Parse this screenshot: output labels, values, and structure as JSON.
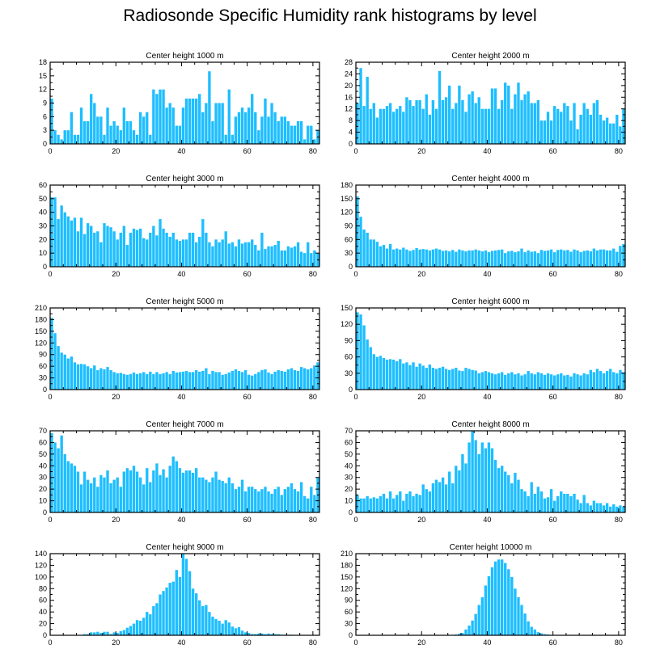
{
  "page_title": "Radiosonde Specific Humidity rank histograms by level",
  "bar_color": "#1ebeff",
  "chart_data": [
    {
      "type": "bar",
      "title": "Center height 1000 m",
      "xlim": [
        0,
        82
      ],
      "ylim": [
        0,
        18
      ],
      "xticks": [
        0,
        20,
        40,
        60,
        80
      ],
      "yticks": [
        0,
        3,
        6,
        9,
        12,
        15,
        18
      ],
      "values": [
        10,
        3,
        2,
        1,
        3,
        3,
        7,
        2,
        2,
        8,
        5,
        5,
        11,
        9,
        6,
        6,
        2,
        8,
        4,
        5,
        4,
        3,
        8,
        5,
        5,
        3,
        2,
        7,
        6,
        7,
        2,
        12,
        11,
        12,
        12,
        8,
        9,
        8,
        4,
        4,
        8,
        10,
        10,
        10,
        10,
        11,
        7,
        9,
        16,
        5,
        9,
        9,
        9,
        2,
        12,
        2,
        6,
        7,
        8,
        7,
        8,
        11,
        7,
        3,
        6,
        10,
        6,
        9,
        7,
        5,
        6,
        6,
        5,
        4,
        4,
        5,
        5,
        1,
        4,
        4,
        1,
        3
      ]
    },
    {
      "type": "bar",
      "title": "Center height 2000 m",
      "xlim": [
        0,
        82
      ],
      "ylim": [
        0,
        28
      ],
      "xticks": [
        0,
        20,
        40,
        60,
        80
      ],
      "yticks": [
        0,
        4,
        8,
        12,
        16,
        20,
        24,
        28
      ],
      "values": [
        14,
        26,
        13,
        23,
        12,
        14,
        9,
        12,
        12,
        13,
        14,
        11,
        12,
        13,
        11,
        16,
        15,
        13,
        15,
        15,
        12,
        17,
        10,
        15,
        12,
        25,
        15,
        16,
        20,
        12,
        14,
        20,
        15,
        11,
        17,
        18,
        14,
        16,
        12,
        12,
        12,
        19,
        19,
        12,
        15,
        21,
        20,
        12,
        17,
        21,
        15,
        17,
        18,
        14,
        14,
        15,
        8,
        8,
        11,
        8,
        13,
        12,
        11,
        14,
        13,
        8,
        14,
        5,
        10,
        14,
        12,
        10,
        14,
        15,
        10,
        8,
        9,
        7,
        7,
        10,
        6,
        12
      ]
    },
    {
      "type": "bar",
      "title": "Center height 3000 m",
      "xlim": [
        0,
        82
      ],
      "ylim": [
        0,
        60
      ],
      "xticks": [
        0,
        20,
        40,
        60,
        80
      ],
      "yticks": [
        0,
        10,
        20,
        30,
        40,
        50,
        60
      ],
      "values": [
        51,
        51,
        35,
        45,
        40,
        37,
        34,
        36,
        26,
        36,
        24,
        32,
        30,
        25,
        26,
        18,
        32,
        30,
        29,
        26,
        20,
        25,
        30,
        16,
        25,
        28,
        27,
        28,
        21,
        20,
        25,
        30,
        23,
        35,
        28,
        25,
        22,
        25,
        20,
        19,
        20,
        20,
        25,
        25,
        18,
        22,
        35,
        25,
        18,
        15,
        20,
        18,
        20,
        26,
        17,
        18,
        15,
        20,
        17,
        18,
        18,
        20,
        16,
        12,
        25,
        13,
        15,
        15,
        16,
        19,
        12,
        12,
        15,
        14,
        15,
        18,
        11,
        10,
        18,
        10,
        12,
        10
      ]
    },
    {
      "type": "bar",
      "title": "Center height 4000 m",
      "xlim": [
        0,
        82
      ],
      "ylim": [
        0,
        180
      ],
      "xticks": [
        0,
        20,
        40,
        60,
        80
      ],
      "yticks": [
        0,
        30,
        60,
        90,
        120,
        150,
        180
      ],
      "values": [
        155,
        110,
        82,
        75,
        60,
        60,
        55,
        45,
        48,
        40,
        50,
        38,
        40,
        38,
        42,
        38,
        35,
        37,
        41,
        38,
        39,
        38,
        36,
        38,
        40,
        38,
        35,
        36,
        34,
        37,
        33,
        38,
        36,
        34,
        36,
        36,
        38,
        36,
        34,
        36,
        32,
        35,
        36,
        37,
        38,
        30,
        34,
        35,
        32,
        34,
        40,
        32,
        36,
        33,
        34,
        30,
        37,
        35,
        36,
        38,
        32,
        37,
        38,
        36,
        37,
        33,
        38,
        36,
        32,
        35,
        36,
        34,
        40,
        36,
        38,
        38,
        36,
        36,
        40,
        33,
        46,
        50
      ]
    },
    {
      "type": "bar",
      "title": "Center height 5000 m",
      "xlim": [
        0,
        82
      ],
      "ylim": [
        0,
        210
      ],
      "xticks": [
        0,
        20,
        40,
        60,
        80
      ],
      "yticks": [
        0,
        30,
        60,
        90,
        120,
        150,
        180,
        210
      ],
      "values": [
        185,
        145,
        112,
        95,
        90,
        80,
        85,
        70,
        65,
        66,
        65,
        60,
        55,
        62,
        50,
        55,
        52,
        58,
        50,
        45,
        42,
        43,
        40,
        38,
        40,
        44,
        40,
        42,
        45,
        40,
        46,
        40,
        45,
        40,
        42,
        45,
        40,
        48,
        44,
        45,
        46,
        48,
        45,
        45,
        50,
        46,
        48,
        55,
        40,
        48,
        45,
        45,
        38,
        40,
        44,
        48,
        52,
        48,
        45,
        50,
        38,
        36,
        40,
        45,
        50,
        52,
        44,
        40,
        46,
        50,
        48,
        46,
        52,
        55,
        50,
        48,
        58,
        55,
        52,
        55,
        62,
        70
      ]
    },
    {
      "type": "bar",
      "title": "Center height 6000 m",
      "xlim": [
        0,
        82
      ],
      "ylim": [
        0,
        150
      ],
      "xticks": [
        0,
        20,
        40,
        60,
        80
      ],
      "yticks": [
        0,
        30,
        60,
        90,
        120,
        150
      ],
      "values": [
        142,
        138,
        118,
        92,
        78,
        65,
        60,
        62,
        58,
        55,
        56,
        55,
        52,
        56,
        48,
        50,
        45,
        50,
        42,
        48,
        44,
        40,
        46,
        40,
        38,
        40,
        42,
        38,
        36,
        38,
        40,
        35,
        34,
        40,
        38,
        36,
        35,
        30,
        32,
        34,
        32,
        30,
        28,
        30,
        32,
        27,
        30,
        32,
        28,
        30,
        26,
        28,
        34,
        30,
        28,
        32,
        30,
        27,
        30,
        28,
        26,
        28,
        30,
        26,
        27,
        24,
        30,
        28,
        26,
        30,
        28,
        36,
        32,
        38,
        34,
        30,
        34,
        38,
        32,
        30,
        36,
        32
      ]
    },
    {
      "type": "bar",
      "title": "Center height 7000 m",
      "xlim": [
        0,
        82
      ],
      "ylim": [
        0,
        70
      ],
      "xticks": [
        0,
        20,
        40,
        60,
        80
      ],
      "yticks": [
        0,
        10,
        20,
        30,
        40,
        50,
        60,
        70
      ],
      "values": [
        68,
        60,
        55,
        66,
        50,
        44,
        42,
        40,
        35,
        24,
        35,
        28,
        25,
        30,
        22,
        32,
        30,
        36,
        25,
        28,
        30,
        22,
        35,
        38,
        36,
        40,
        35,
        30,
        24,
        38,
        26,
        36,
        42,
        32,
        37,
        30,
        40,
        48,
        44,
        38,
        34,
        36,
        36,
        34,
        38,
        30,
        30,
        28,
        26,
        30,
        35,
        28,
        27,
        25,
        30,
        25,
        20,
        22,
        28,
        18,
        22,
        22,
        20,
        18,
        20,
        22,
        18,
        16,
        20,
        22,
        15,
        20,
        22,
        25,
        20,
        18,
        26,
        14,
        12,
        22,
        15,
        30
      ]
    },
    {
      "type": "bar",
      "title": "Center height 8000 m",
      "xlim": [
        0,
        82
      ],
      "ylim": [
        0,
        70
      ],
      "xticks": [
        0,
        20,
        40,
        60,
        80
      ],
      "yticks": [
        0,
        10,
        20,
        30,
        40,
        50,
        60,
        70
      ],
      "values": [
        15,
        12,
        12,
        14,
        12,
        13,
        12,
        14,
        16,
        12,
        18,
        12,
        15,
        18,
        10,
        16,
        18,
        14,
        16,
        15,
        24,
        20,
        18,
        25,
        28,
        26,
        30,
        24,
        35,
        25,
        40,
        36,
        50,
        42,
        60,
        70,
        62,
        50,
        60,
        55,
        60,
        55,
        45,
        38,
        40,
        35,
        32,
        25,
        34,
        28,
        20,
        18,
        14,
        26,
        16,
        22,
        18,
        12,
        13,
        20,
        10,
        14,
        18,
        16,
        16,
        14,
        16,
        11,
        8,
        15,
        8,
        6,
        10,
        8,
        8,
        6,
        8,
        5,
        7,
        5,
        6,
        5
      ]
    },
    {
      "type": "bar",
      "title": "Center height 9000 m",
      "xlim": [
        0,
        82
      ],
      "ylim": [
        0,
        140
      ],
      "xticks": [
        0,
        20,
        40,
        60,
        80
      ],
      "yticks": [
        0,
        20,
        40,
        60,
        80,
        100,
        120,
        140
      ],
      "values": [
        0,
        0,
        0,
        0,
        0,
        0,
        0,
        0,
        0,
        0,
        2,
        2,
        5,
        5,
        6,
        4,
        6,
        6,
        2,
        5,
        4,
        7,
        9,
        13,
        16,
        20,
        26,
        25,
        30,
        40,
        36,
        50,
        55,
        70,
        76,
        82,
        90,
        92,
        112,
        100,
        140,
        131,
        110,
        80,
        72,
        60,
        50,
        52,
        40,
        32,
        28,
        25,
        20,
        26,
        22,
        15,
        12,
        14,
        8,
        5,
        4,
        2,
        2,
        3,
        3,
        2,
        3,
        2,
        2,
        2,
        1,
        1,
        1,
        1,
        0,
        0,
        0,
        0,
        0,
        0,
        0,
        0
      ]
    },
    {
      "type": "bar",
      "title": "Center height 10000 m",
      "xlim": [
        0,
        82
      ],
      "ylim": [
        0,
        210
      ],
      "xticks": [
        0,
        20,
        40,
        60,
        80
      ],
      "yticks": [
        0,
        30,
        60,
        90,
        120,
        150,
        180,
        210
      ],
      "values": [
        0,
        0,
        0,
        0,
        0,
        0,
        0,
        0,
        0,
        0,
        0,
        0,
        0,
        0,
        0,
        0,
        0,
        0,
        0,
        0,
        0,
        0,
        0,
        0,
        0,
        0,
        0,
        0,
        0,
        0,
        2,
        4,
        6,
        15,
        25,
        38,
        55,
        78,
        98,
        128,
        152,
        175,
        190,
        195,
        195,
        186,
        170,
        150,
        120,
        98,
        78,
        56,
        36,
        22,
        15,
        8,
        5,
        3,
        2,
        1,
        1,
        0,
        0,
        0,
        0,
        0,
        0,
        0,
        0,
        0,
        0,
        0,
        0,
        0,
        0,
        0,
        0,
        0,
        0,
        0,
        0,
        0
      ]
    }
  ]
}
